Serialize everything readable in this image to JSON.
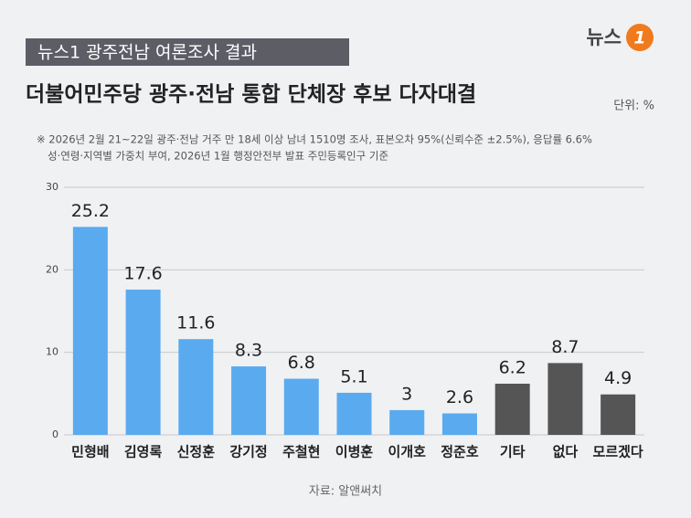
{
  "logo": {
    "text": "뉴스",
    "mark": "1"
  },
  "header_tag": "뉴스1 광주전남 여론조사 결과",
  "chart_data": {
    "type": "bar",
    "title": "더불어민주당 광주·전남 통합 단체장 후보 다자대결",
    "unit_label": "단위: %",
    "notes": [
      "※ 2026년 2월 21~22일 광주·전남 거주 만 18세 이상 남녀 1510명 조사, 표본오차 95%(신뢰수준 ±2.5%), 응답률 6.6%",
      "성·연령·지역별 가중치 부여, 2026년 1월 행정안전부 발표 주민등록인구 기준"
    ],
    "categories": [
      "민형배",
      "김영록",
      "신정훈",
      "강기정",
      "주철현",
      "이병훈",
      "이개호",
      "정준호",
      "기타",
      "없다",
      "모르겠다"
    ],
    "values": [
      25.2,
      17.6,
      11.6,
      8.3,
      6.8,
      5.1,
      3,
      2.6,
      6.2,
      8.7,
      4.9
    ],
    "colors": [
      "#5aaaf0",
      "#5aaaf0",
      "#5aaaf0",
      "#5aaaf0",
      "#5aaaf0",
      "#5aaaf0",
      "#5aaaf0",
      "#5aaaf0",
      "#555555",
      "#555555",
      "#555555"
    ],
    "ylim": [
      0,
      30
    ],
    "yticks": [
      0,
      10,
      20,
      30
    ],
    "grid": true,
    "source": "자료: 알앤써치"
  }
}
